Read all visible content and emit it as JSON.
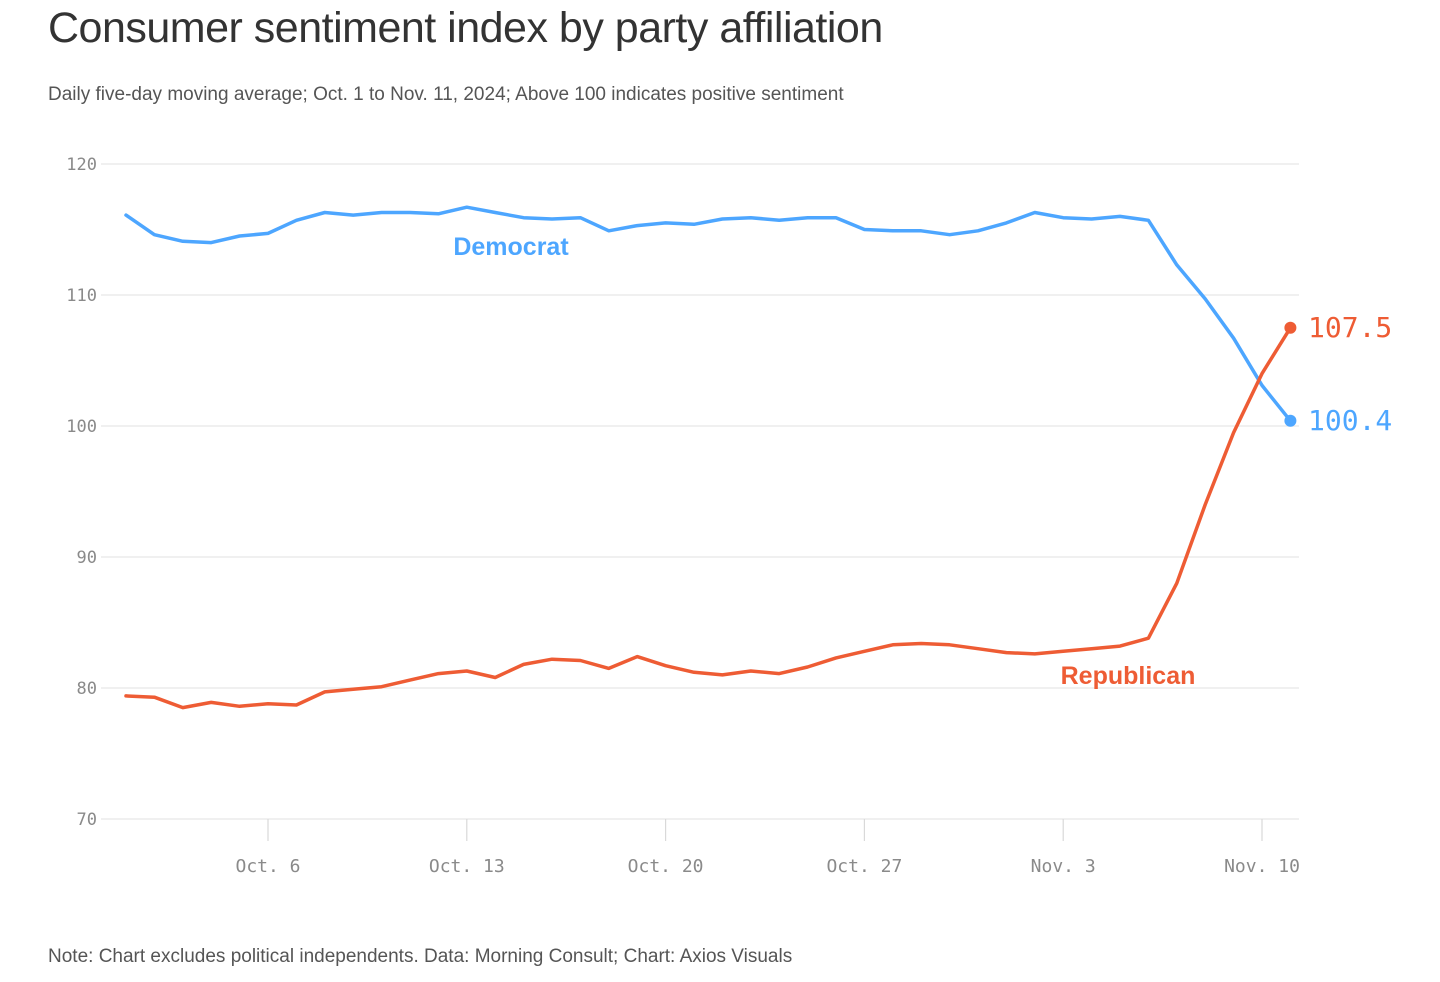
{
  "header": {
    "title": "Consumer sentiment index by party affiliation",
    "subtitle": "Daily five-day moving average; Oct. 1 to Nov. 11, 2024; Above 100 indicates positive sentiment"
  },
  "footer": {
    "note": "Note: Chart excludes political independents. Data: Morning Consult; Chart: Axios Visuals"
  },
  "chart_data": {
    "type": "line",
    "title": "Consumer sentiment index by party affiliation",
    "subtitle": "Daily five-day moving average; Oct. 1 to Nov. 11, 2024; Above 100 indicates positive sentiment",
    "xlabel": "",
    "ylabel": "",
    "ylim": [
      70,
      120
    ],
    "yticks": [
      120,
      110,
      100,
      90,
      80,
      70
    ],
    "grid": true,
    "legend": "direct labels",
    "x": [
      "Oct. 1",
      "Oct. 2",
      "Oct. 3",
      "Oct. 4",
      "Oct. 5",
      "Oct. 6",
      "Oct. 7",
      "Oct. 8",
      "Oct. 9",
      "Oct. 10",
      "Oct. 11",
      "Oct. 12",
      "Oct. 13",
      "Oct. 14",
      "Oct. 15",
      "Oct. 16",
      "Oct. 17",
      "Oct. 18",
      "Oct. 19",
      "Oct. 20",
      "Oct. 21",
      "Oct. 22",
      "Oct. 23",
      "Oct. 24",
      "Oct. 25",
      "Oct. 26",
      "Oct. 27",
      "Oct. 28",
      "Oct. 29",
      "Oct. 30",
      "Oct. 31",
      "Nov. 1",
      "Nov. 2",
      "Nov. 3",
      "Nov. 4",
      "Nov. 5",
      "Nov. 6",
      "Nov. 7",
      "Nov. 8",
      "Nov. 9",
      "Nov. 10",
      "Nov. 11"
    ],
    "x_ticks": [
      {
        "label": "Oct. 6",
        "index": 5
      },
      {
        "label": "Oct. 13",
        "index": 12
      },
      {
        "label": "Oct. 20",
        "index": 19
      },
      {
        "label": "Oct. 27",
        "index": 26
      },
      {
        "label": "Nov. 3",
        "index": 33
      },
      {
        "label": "Nov. 10",
        "index": 40
      }
    ],
    "series": [
      {
        "name": "Democrat",
        "color": "#4da6ff",
        "end_label": "100.4",
        "values": [
          116.1,
          114.6,
          114.1,
          114.0,
          114.5,
          114.7,
          115.7,
          116.3,
          116.1,
          116.3,
          116.3,
          116.2,
          116.7,
          116.3,
          115.9,
          115.8,
          115.9,
          114.9,
          115.3,
          115.5,
          115.4,
          115.8,
          115.9,
          115.7,
          115.9,
          115.9,
          115.0,
          114.9,
          114.9,
          114.6,
          114.9,
          115.5,
          116.3,
          115.9,
          115.8,
          116.0,
          115.7,
          112.3,
          109.7,
          106.7,
          103.1,
          100.4
        ]
      },
      {
        "name": "Republican",
        "color": "#ee5c34",
        "end_label": "107.5",
        "values": [
          79.4,
          79.3,
          78.5,
          78.9,
          78.6,
          78.8,
          78.7,
          79.7,
          79.9,
          80.1,
          80.6,
          81.1,
          81.3,
          80.8,
          81.8,
          82.2,
          82.1,
          81.5,
          82.4,
          81.7,
          81.2,
          81.0,
          81.3,
          81.1,
          81.6,
          82.3,
          82.8,
          83.3,
          83.4,
          83.3,
          83.0,
          82.7,
          82.6,
          82.8,
          83.0,
          83.2,
          83.8,
          88.0,
          94.0,
          99.5,
          104.0,
          107.5
        ]
      }
    ]
  }
}
